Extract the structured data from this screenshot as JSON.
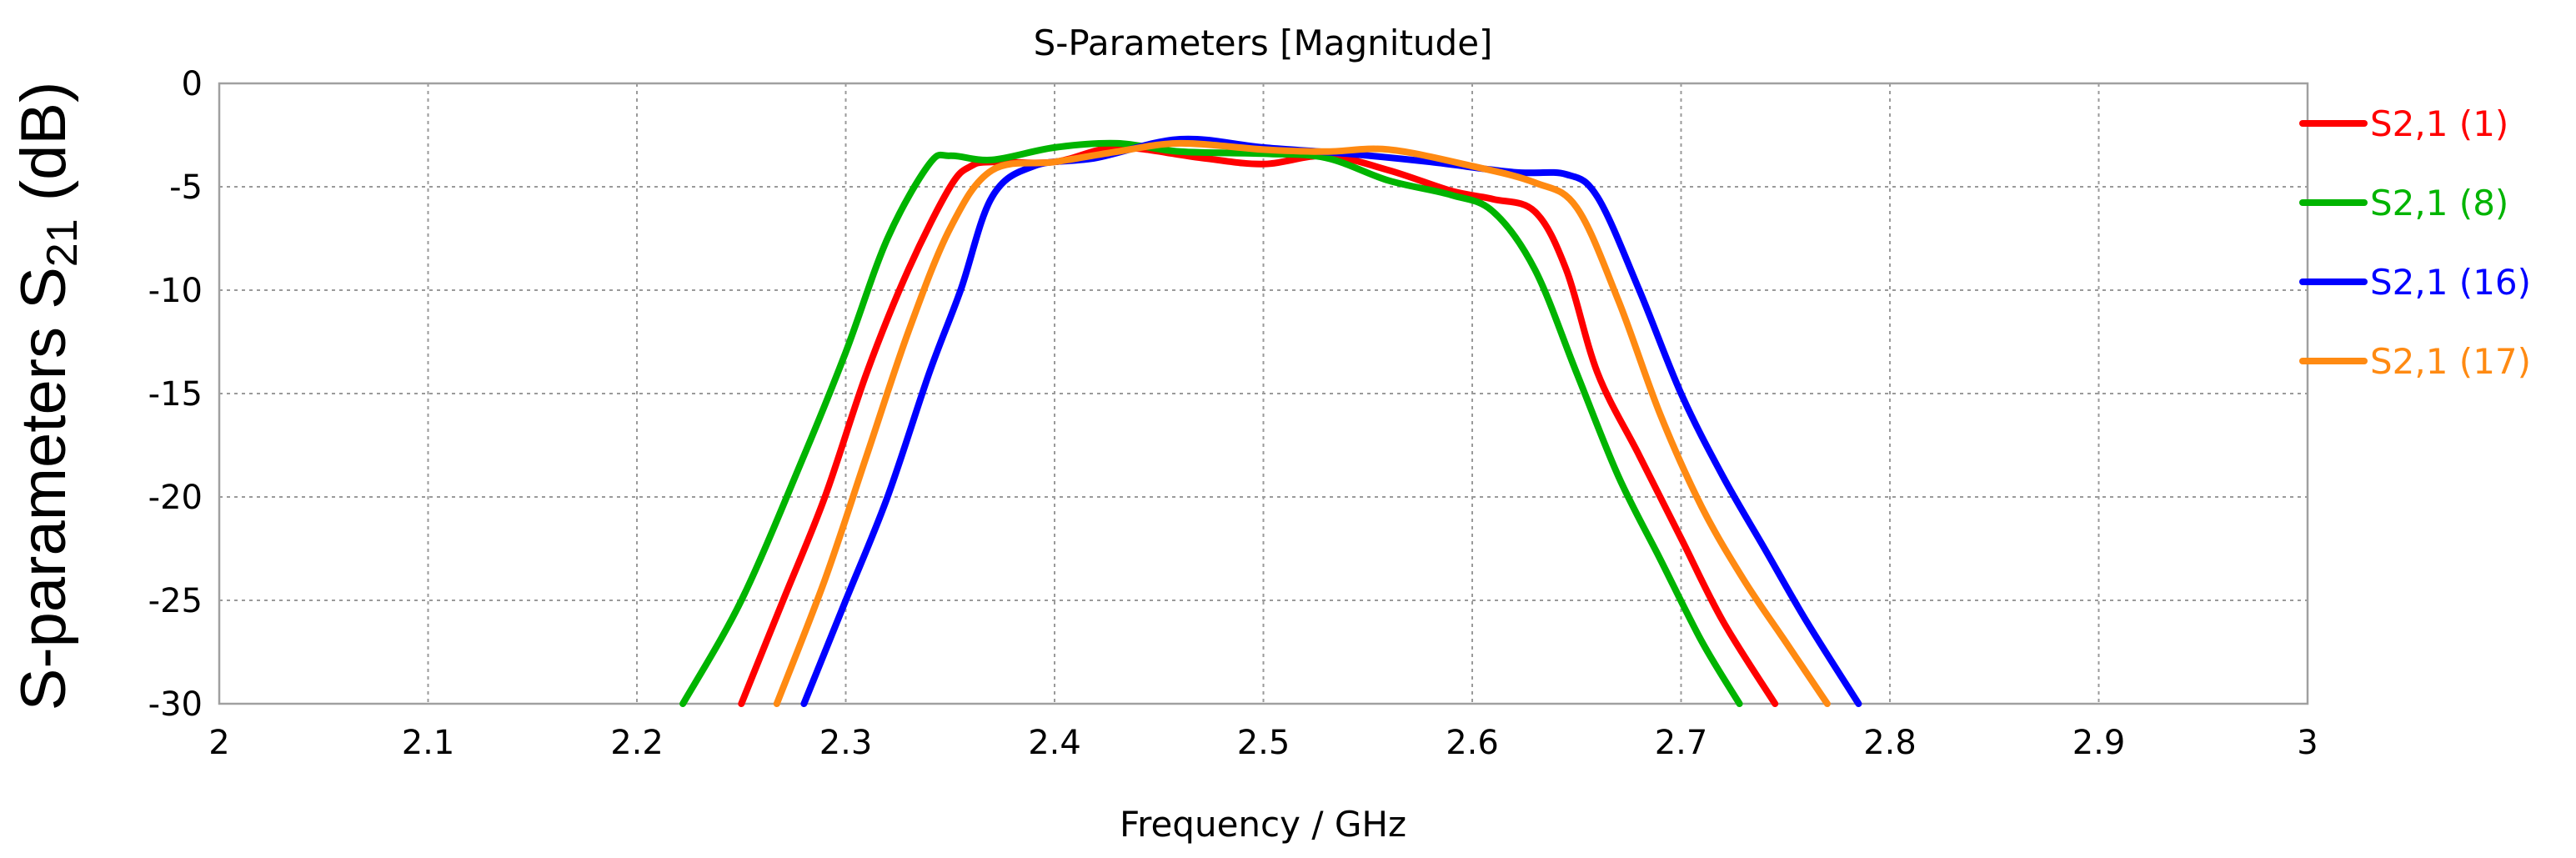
{
  "chart_data": {
    "type": "line",
    "title": "S-Parameters [Magnitude]",
    "xlabel": "Frequency / GHz",
    "ylabel": {
      "main": "S-parameters S",
      "subscript": "21",
      "suffix": " (dB)"
    },
    "xlim": [
      2,
      3
    ],
    "ylim": [
      -30,
      0
    ],
    "xticks": [
      "2",
      "2.1",
      "2.2",
      "2.3",
      "2.4",
      "2.5",
      "2.6",
      "2.7",
      "2.8",
      "2.9",
      "3"
    ],
    "yticks": [
      "0",
      "-5",
      "-10",
      "-15",
      "-20",
      "-25",
      "-30"
    ],
    "grid": true,
    "legend_position": "right",
    "series": [
      {
        "name": "S2,1 (1)",
        "color": "#ff0000",
        "x": [
          2.25,
          2.27,
          2.29,
          2.31,
          2.33,
          2.35,
          2.36,
          2.37,
          2.4,
          2.43,
          2.47,
          2.5,
          2.53,
          2.56,
          2.59,
          2.61,
          2.63,
          2.645,
          2.66,
          2.68,
          2.7,
          2.72,
          2.745
        ],
        "y": [
          -30,
          -25,
          -20,
          -14,
          -9,
          -5,
          -4,
          -3.8,
          -3.8,
          -3.1,
          -3.6,
          -3.9,
          -3.5,
          -4.2,
          -5.2,
          -5.6,
          -6.2,
          -9,
          -14,
          -18,
          -22,
          -26,
          -30
        ]
      },
      {
        "name": "S2,1 (8)",
        "color": "#00b400",
        "x": [
          2.222,
          2.25,
          2.28,
          2.3,
          2.32,
          2.34,
          2.35,
          2.37,
          2.4,
          2.43,
          2.46,
          2.5,
          2.53,
          2.56,
          2.59,
          2.61,
          2.63,
          2.65,
          2.67,
          2.69,
          2.71,
          2.728
        ],
        "y": [
          -30,
          -25,
          -18,
          -13,
          -7.5,
          -3.9,
          -3.5,
          -3.7,
          -3.1,
          -2.9,
          -3.3,
          -3.4,
          -3.6,
          -4.7,
          -5.4,
          -6.2,
          -9,
          -14,
          -19,
          -23,
          -27,
          -30
        ]
      },
      {
        "name": "S2,1 (16)",
        "color": "#0000ff",
        "x": [
          2.28,
          2.3,
          2.32,
          2.34,
          2.355,
          2.37,
          2.39,
          2.42,
          2.46,
          2.5,
          2.54,
          2.58,
          2.62,
          2.645,
          2.66,
          2.68,
          2.7,
          2.72,
          2.74,
          2.76,
          2.785
        ],
        "y": [
          -30,
          -25,
          -20,
          -14,
          -10,
          -5.5,
          -4,
          -3.6,
          -2.7,
          -3.1,
          -3.4,
          -3.8,
          -4.3,
          -4.4,
          -5.5,
          -10,
          -15,
          -19,
          -22.5,
          -26,
          -30
        ]
      },
      {
        "name": "S2,1 (17)",
        "color": "#ff8a12",
        "x": [
          2.267,
          2.29,
          2.31,
          2.33,
          2.35,
          2.37,
          2.4,
          2.43,
          2.46,
          2.5,
          2.53,
          2.56,
          2.6,
          2.63,
          2.65,
          2.67,
          2.69,
          2.71,
          2.73,
          2.75,
          2.77
        ],
        "y": [
          -30,
          -24,
          -18,
          -12,
          -7,
          -4.2,
          -3.8,
          -3.3,
          -2.9,
          -3.2,
          -3.3,
          -3.2,
          -4,
          -4.8,
          -6,
          -10.5,
          -16,
          -20.5,
          -24,
          -27,
          -30
        ]
      }
    ]
  }
}
